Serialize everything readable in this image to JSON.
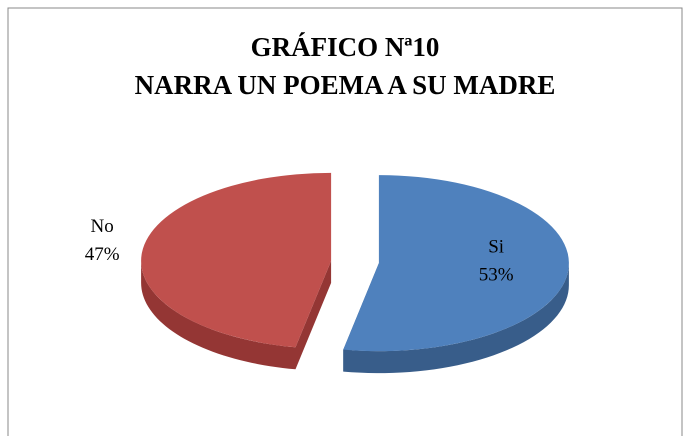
{
  "chart_data": {
    "type": "pie",
    "title": "GRÁFICO Nª10",
    "subtitle": "NARRA UN POEMA  A SU MADRE",
    "categories": [
      "Si",
      "No"
    ],
    "values": [
      53,
      47
    ],
    "value_labels": [
      "53%",
      "47%"
    ],
    "colors": [
      "#4f81bd",
      "#c0504d"
    ],
    "side_colors": [
      "#385d8a",
      "#943634"
    ]
  }
}
